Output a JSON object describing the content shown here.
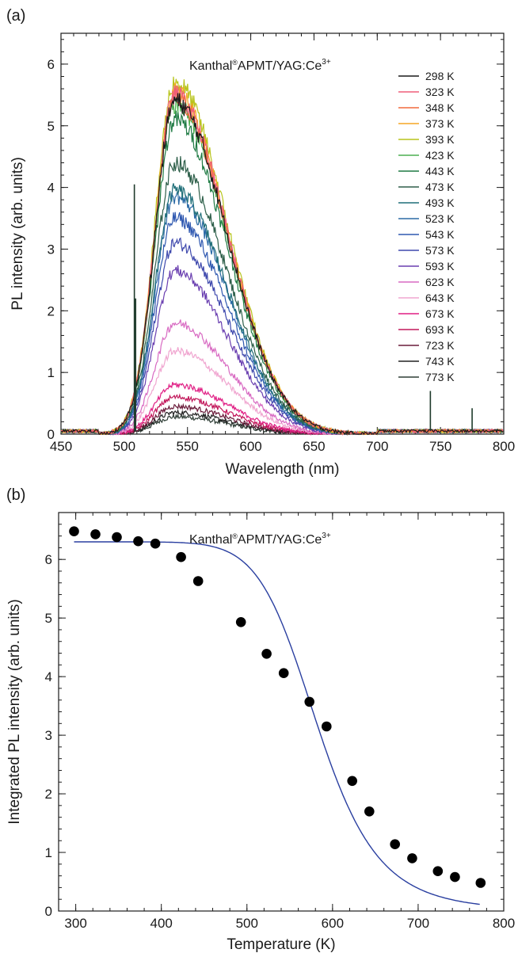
{
  "chart_data": [
    {
      "panel_label": "(a)",
      "type": "line",
      "annotation": {
        "main": "Kanthal",
        "reg": "®",
        "rest": "APMT/YAG:Ce",
        "sup": "3+"
      },
      "xlabel": "Wavelength (nm)",
      "ylabel": "PL intensity (arb. units)",
      "xlim": [
        450,
        800
      ],
      "ylim": [
        0,
        6.5
      ],
      "xticks": [
        450,
        500,
        550,
        600,
        650,
        700,
        750,
        800
      ],
      "yticks": [
        0,
        1,
        2,
        3,
        4,
        5,
        6
      ],
      "x_minor_step": 10,
      "y_minor_step": 0.2,
      "legend_position": "top-right",
      "peak_center": 540,
      "series": [
        {
          "name": "298 K",
          "color": "#1a1a1a",
          "peak": 5.4
        },
        {
          "name": "323 K",
          "color": "#ef5f7a",
          "peak": 5.5
        },
        {
          "name": "348 K",
          "color": "#f26a3d",
          "peak": 5.45
        },
        {
          "name": "373 K",
          "color": "#f5a623",
          "peak": 5.55
        },
        {
          "name": "393 K",
          "color": "#b8c41c",
          "peak": 5.7
        },
        {
          "name": "423 K",
          "color": "#4caf50",
          "peak": 5.35
        },
        {
          "name": "443 K",
          "color": "#1e7a43",
          "peak": 5.1
        },
        {
          "name": "473 K",
          "color": "#2e5f4a",
          "peak": 4.4
        },
        {
          "name": "493 K",
          "color": "#1f6e78",
          "peak": 3.95
        },
        {
          "name": "523 K",
          "color": "#2b6aa6",
          "peak": 3.85
        },
        {
          "name": "543 K",
          "color": "#2f58b0",
          "peak": 3.5
        },
        {
          "name": "573 K",
          "color": "#3f49ad",
          "peak": 3.1
        },
        {
          "name": "593 K",
          "color": "#6a3fb0",
          "peak": 2.65
        },
        {
          "name": "623 K",
          "color": "#d86ac2",
          "peak": 1.8
        },
        {
          "name": "643 K",
          "color": "#f0a6d0",
          "peak": 1.35
        },
        {
          "name": "673 K",
          "color": "#e01e84",
          "peak": 0.8
        },
        {
          "name": "693 K",
          "color": "#c2185b",
          "peak": 0.6
        },
        {
          "name": "723 K",
          "color": "#6a1b3a",
          "peak": 0.45
        },
        {
          "name": "743 K",
          "color": "#222222",
          "peak": 0.35
        },
        {
          "name": "773 K",
          "color": "#2f3e36",
          "peak": 0.28
        }
      ]
    },
    {
      "panel_label": "(b)",
      "type": "scatter",
      "annotation": {
        "main": "Kanthal",
        "reg": "®",
        "rest": "APMT/YAG:Ce",
        "sup": "3+"
      },
      "xlabel": "Temperature (K)",
      "ylabel": "Integrated PL intensity (arb. units)",
      "xlim": [
        280,
        800
      ],
      "ylim": [
        0,
        6.8
      ],
      "xticks": [
        300,
        400,
        500,
        600,
        700,
        800
      ],
      "yticks": [
        0,
        1,
        2,
        3,
        4,
        5,
        6
      ],
      "x_minor_step": 20,
      "y_minor_step": 0.2,
      "x": [
        298,
        323,
        348,
        373,
        393,
        423,
        443,
        493,
        523,
        543,
        573,
        593,
        623,
        643,
        673,
        693,
        723,
        743,
        773
      ],
      "y": [
        6.48,
        6.43,
        6.38,
        6.31,
        6.27,
        6.04,
        5.63,
        4.93,
        4.39,
        4.06,
        3.57,
        3.15,
        2.22,
        1.7,
        1.14,
        0.9,
        0.68,
        0.58,
        0.48
      ],
      "marker_color": "#000000",
      "fit_color": "#2a3fa0",
      "fit": {
        "I0": 6.3,
        "A": 12000000,
        "Ea_over_k": 9500,
        "x_start": 298,
        "x_end": 773
      }
    }
  ]
}
